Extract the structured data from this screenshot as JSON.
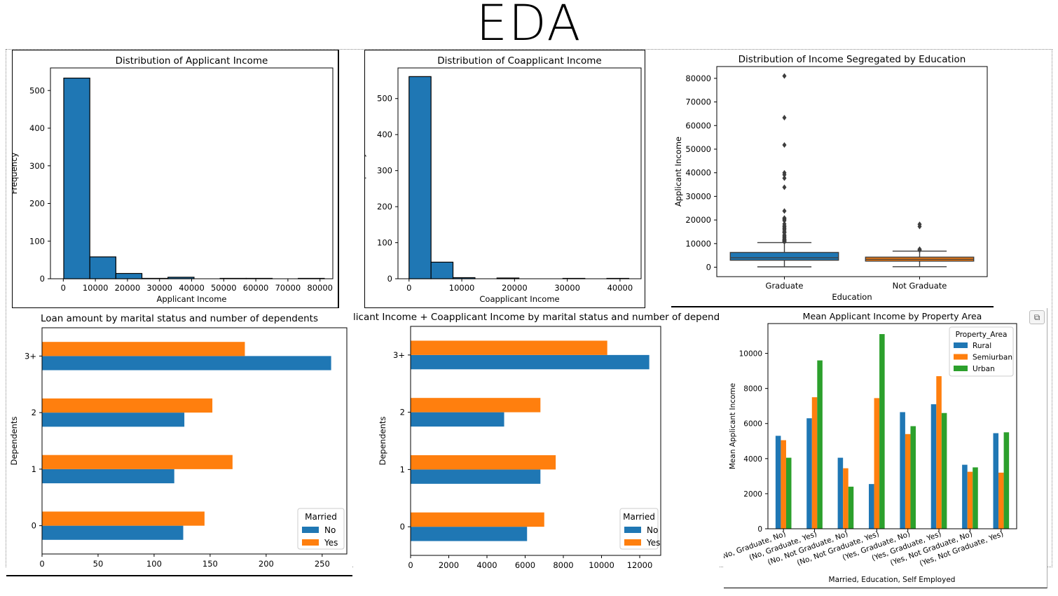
{
  "page": {
    "title": "EDA"
  },
  "chart_data": [
    {
      "id": "hist_applicant",
      "type": "bar",
      "title": "Distribution of Applicant Income",
      "xlabel": "Applicant Income",
      "ylabel": "Frequency",
      "x_ticks": [
        "0",
        "10000",
        "20000",
        "30000",
        "40000",
        "50000",
        "60000",
        "70000",
        "80000"
      ],
      "y_ticks": [
        "0",
        "100",
        "200",
        "300",
        "400",
        "500"
      ],
      "xlim": [
        -4000,
        84000
      ],
      "ylim": [
        0,
        560
      ],
      "bins": [
        {
          "x0": 150,
          "x1": 8270,
          "count": 533
        },
        {
          "x0": 8270,
          "x1": 16390,
          "count": 58
        },
        {
          "x0": 16390,
          "x1": 24510,
          "count": 14
        },
        {
          "x0": 24510,
          "x1": 32630,
          "count": 1
        },
        {
          "x0": 32630,
          "x1": 40750,
          "count": 4
        },
        {
          "x0": 40750,
          "x1": 48870,
          "count": 0
        },
        {
          "x0": 48870,
          "x1": 56990,
          "count": 1
        },
        {
          "x0": 56990,
          "x1": 65110,
          "count": 1
        },
        {
          "x0": 65110,
          "x1": 73230,
          "count": 0
        },
        {
          "x0": 73230,
          "x1": 81350,
          "count": 1
        }
      ],
      "color": "#1f77b4"
    },
    {
      "id": "hist_coapplicant",
      "type": "bar",
      "title": "Distribution of Coapplicant Income",
      "xlabel": "Coapplicant Income",
      "ylabel": "Frequency",
      "x_ticks": [
        "0",
        "10000",
        "20000",
        "30000",
        "40000"
      ],
      "y_ticks": [
        "0",
        "100",
        "200",
        "300",
        "400",
        "500"
      ],
      "xlim": [
        -2100,
        44000
      ],
      "ylim": [
        0,
        585
      ],
      "bins": [
        {
          "x0": 0,
          "x1": 4167,
          "count": 561
        },
        {
          "x0": 4167,
          "x1": 8334,
          "count": 46
        },
        {
          "x0": 8334,
          "x1": 12501,
          "count": 3
        },
        {
          "x0": 12501,
          "x1": 16668,
          "count": 0
        },
        {
          "x0": 16668,
          "x1": 20835,
          "count": 2
        },
        {
          "x0": 20835,
          "x1": 25002,
          "count": 0
        },
        {
          "x0": 25002,
          "x1": 29169,
          "count": 0
        },
        {
          "x0": 29169,
          "x1": 33336,
          "count": 1
        },
        {
          "x0": 33336,
          "x1": 37503,
          "count": 0
        },
        {
          "x0": 37503,
          "x1": 41670,
          "count": 1
        }
      ],
      "color": "#1f77b4"
    },
    {
      "id": "box_education",
      "type": "box",
      "title": "Distribution of Income Segregated by Education",
      "xlabel": "Education",
      "ylabel": "Applicant Income",
      "y_ticks": [
        "0",
        "10000",
        "20000",
        "30000",
        "40000",
        "50000",
        "60000",
        "70000",
        "80000"
      ],
      "ylim": [
        -4000,
        85000
      ],
      "groups": [
        {
          "name": "Graduate",
          "color": "#1f77b4",
          "min": 150,
          "q1": 2960,
          "median": 4000,
          "q3": 6250,
          "max": 10400,
          "outliers": [
            81000,
            63337,
            51763,
            39999,
            39147,
            37719,
            33846,
            23803,
            20833,
            20667,
            20233,
            19730,
            18333,
            17500,
            17263,
            16667,
            16250,
            15759,
            15000,
            14999,
            14880,
            14583,
            13650,
            13262,
            12876,
            12500,
            12000,
            11757,
            11500,
            11417,
            11250,
            11146,
            11000,
            10833,
            10750
          ]
        },
        {
          "name": "Not Graduate",
          "color": "#ff7f0e",
          "min": 210,
          "q1": 2580,
          "median": 3360,
          "q3": 4250,
          "max": 6820,
          "outliers": [
            18165,
            17263,
            7660,
            7333,
            7200
          ]
        }
      ]
    },
    {
      "id": "hbar_loan",
      "type": "bar",
      "orientation": "horizontal",
      "title": "Loan amount by marital status and number of dependents",
      "xlabel": "",
      "ylabel": "Dependents",
      "categories": [
        "0",
        "1",
        "2",
        "3+"
      ],
      "x_ticks": [
        "0",
        "50",
        "100",
        "150",
        "200",
        "250"
      ],
      "xlim": [
        0,
        272
      ],
      "legend_title": "Married",
      "series": [
        {
          "name": "No",
          "color": "#1f77b4",
          "values": [
            126,
            118,
            127,
            258
          ]
        },
        {
          "name": "Yes",
          "color": "#ff7f0e",
          "values": [
            145,
            170,
            152,
            181
          ]
        }
      ],
      "legend": "bottom-right"
    },
    {
      "id": "hbar_total_income",
      "type": "bar",
      "orientation": "horizontal",
      "title": "Applicant Income + Coapplicant Income by marital status and number of dependents",
      "xlabel": "",
      "ylabel": "Dependents",
      "categories": [
        "0",
        "1",
        "2",
        "3+"
      ],
      "x_ticks": [
        "0",
        "2000",
        "4000",
        "6000",
        "8000",
        "10000",
        "12000"
      ],
      "xlim": [
        0,
        13100
      ],
      "legend_title": "Married",
      "series": [
        {
          "name": "No",
          "color": "#1f77b4",
          "values": [
            6100,
            6800,
            4900,
            12500
          ]
        },
        {
          "name": "Yes",
          "color": "#ff7f0e",
          "values": [
            7000,
            7600,
            6800,
            10300
          ]
        }
      ],
      "legend": "bottom-right"
    },
    {
      "id": "bar_property",
      "type": "bar",
      "title": "Mean Applicant Income by Property Area",
      "xlabel": "Married, Education, Self Employed",
      "ylabel": "Mean Applicant Income",
      "categories": [
        "(No, Graduate, No)",
        "(No, Graduate, Yes)",
        "(No, Not Graduate, No)",
        "(No, Not Graduate, Yes)",
        "(Yes, Graduate, No)",
        "(Yes, Graduate, Yes)",
        "(Yes, Not Graduate, No)",
        "(Yes, Not Graduate, Yes)"
      ],
      "y_ticks": [
        "0",
        "2000",
        "4000",
        "6000",
        "8000",
        "10000"
      ],
      "ylim": [
        0,
        11700
      ],
      "legend_title": "Property_Area",
      "series": [
        {
          "name": "Rural",
          "color": "#1f77b4",
          "values": [
            5300,
            6300,
            4050,
            2550,
            6650,
            7100,
            3650,
            5450
          ]
        },
        {
          "name": "Semiurban",
          "color": "#ff7f0e",
          "values": [
            5050,
            7500,
            3450,
            7450,
            5400,
            8700,
            3250,
            3200
          ]
        },
        {
          "name": "Urban",
          "color": "#2ca02c",
          "values": [
            4050,
            9600,
            2400,
            11100,
            5850,
            6600,
            3500,
            5500
          ]
        }
      ],
      "legend": "top-right"
    }
  ]
}
